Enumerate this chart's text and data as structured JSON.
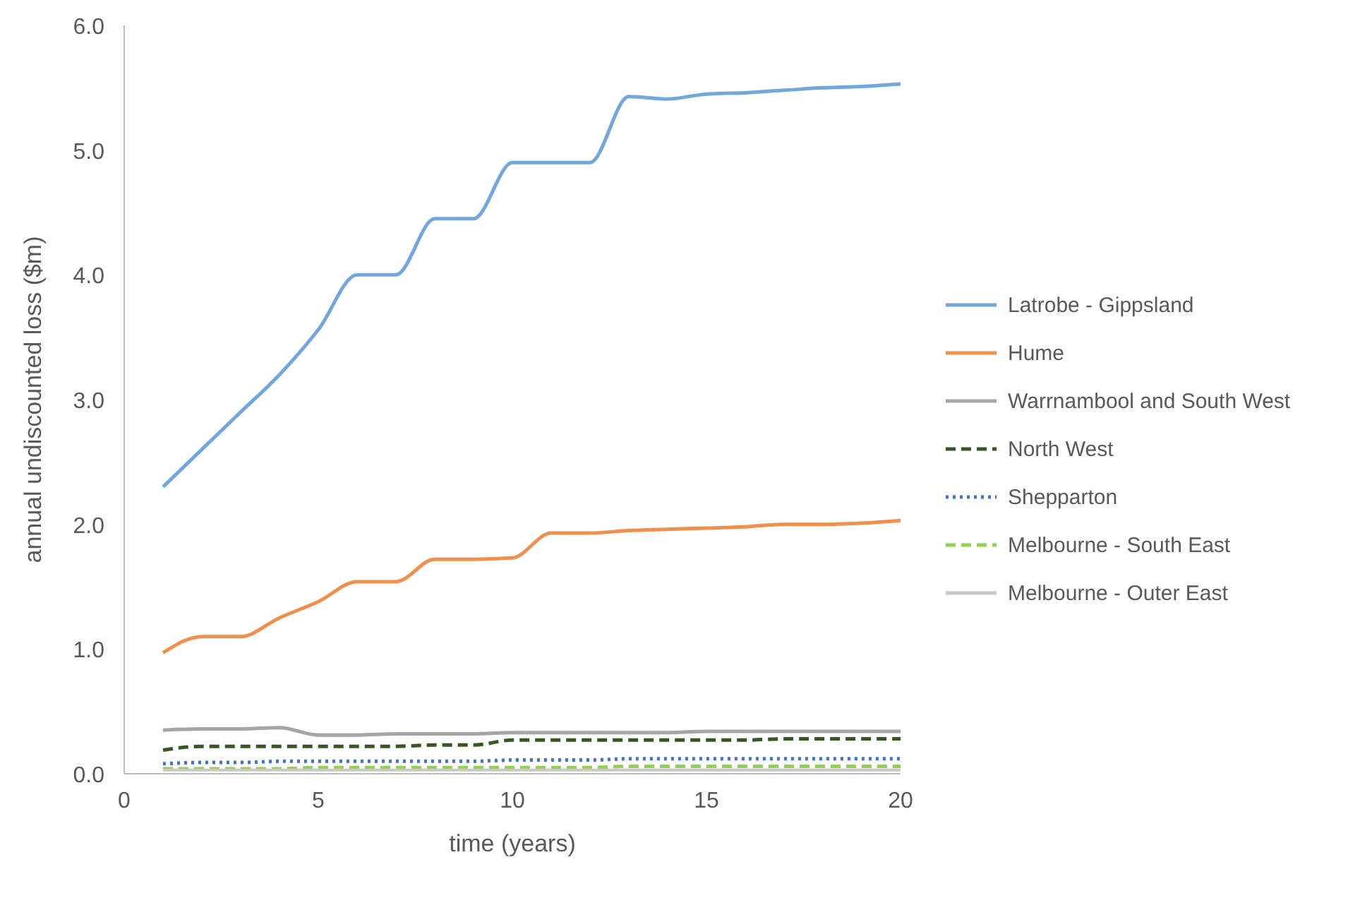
{
  "chart_data": {
    "type": "line",
    "xlabel": "time (years)",
    "ylabel": "annual undiscounted loss ($m)",
    "x": [
      1,
      2,
      3,
      4,
      5,
      6,
      7,
      8,
      9,
      10,
      11,
      12,
      13,
      14,
      15,
      16,
      17,
      18,
      19,
      20
    ],
    "xlim": [
      0,
      20
    ],
    "xticks": [
      0,
      5,
      10,
      15,
      20
    ],
    "ylim": [
      0,
      6
    ],
    "yticks": [
      {
        "value": 0,
        "label": "0.0"
      },
      {
        "value": 1,
        "label": "1.0"
      },
      {
        "value": 2,
        "label": "2.0"
      },
      {
        "value": 3,
        "label": "3.0"
      },
      {
        "value": 4,
        "label": "4.0"
      },
      {
        "value": 5,
        "label": "5.0"
      },
      {
        "value": 6,
        "label": "6.0"
      }
    ],
    "grid": false,
    "legend": "right",
    "marker": "none",
    "series": [
      {
        "name": "Latrobe - Gippsland",
        "color": "#72a6dc",
        "line_style": "solid",
        "values": [
          2.3,
          2.6,
          2.9,
          3.2,
          3.56,
          4.0,
          4.0,
          4.45,
          4.45,
          4.9,
          4.9,
          4.9,
          5.43,
          5.41,
          5.45,
          5.46,
          5.48,
          5.5,
          5.51,
          5.53
        ]
      },
      {
        "name": "Hume",
        "color": "#f0904e",
        "line_style": "solid",
        "values": [
          0.97,
          1.1,
          1.1,
          1.25,
          1.38,
          1.54,
          1.54,
          1.72,
          1.72,
          1.73,
          1.93,
          1.93,
          1.95,
          1.96,
          1.97,
          1.98,
          2.0,
          2.0,
          2.01,
          2.03
        ]
      },
      {
        "name": "Warrnambool and South West",
        "color": "#a5a5a5",
        "line_style": "solid",
        "values": [
          0.35,
          0.36,
          0.36,
          0.37,
          0.31,
          0.31,
          0.32,
          0.32,
          0.32,
          0.33,
          0.33,
          0.33,
          0.33,
          0.33,
          0.34,
          0.34,
          0.34,
          0.34,
          0.34,
          0.34
        ]
      },
      {
        "name": "North West",
        "color": "#375623",
        "line_style": "dashed",
        "values": [
          0.19,
          0.22,
          0.22,
          0.22,
          0.22,
          0.22,
          0.22,
          0.23,
          0.23,
          0.27,
          0.27,
          0.27,
          0.27,
          0.27,
          0.27,
          0.27,
          0.28,
          0.28,
          0.28,
          0.28
        ]
      },
      {
        "name": "Shepparton",
        "color": "#4472c4",
        "line_style": "dotted",
        "values": [
          0.08,
          0.09,
          0.09,
          0.1,
          0.1,
          0.1,
          0.1,
          0.1,
          0.1,
          0.11,
          0.11,
          0.11,
          0.12,
          0.12,
          0.12,
          0.12,
          0.12,
          0.12,
          0.12,
          0.12
        ]
      },
      {
        "name": "Melbourne - South East",
        "color": "#92d050",
        "line_style": "dashed",
        "values": [
          0.04,
          0.04,
          0.04,
          0.04,
          0.05,
          0.05,
          0.05,
          0.05,
          0.05,
          0.05,
          0.05,
          0.05,
          0.06,
          0.06,
          0.06,
          0.06,
          0.06,
          0.06,
          0.06,
          0.06
        ]
      },
      {
        "name": "Melbourne - Outer East",
        "color": "#c8c8c8",
        "line_style": "solid",
        "values": [
          0.03,
          0.03,
          0.03,
          0.03,
          0.03,
          0.03,
          0.03,
          0.03,
          0.03,
          0.03,
          0.03,
          0.03,
          0.03,
          0.03,
          0.03,
          0.03,
          0.03,
          0.03,
          0.03,
          0.03
        ]
      }
    ]
  }
}
